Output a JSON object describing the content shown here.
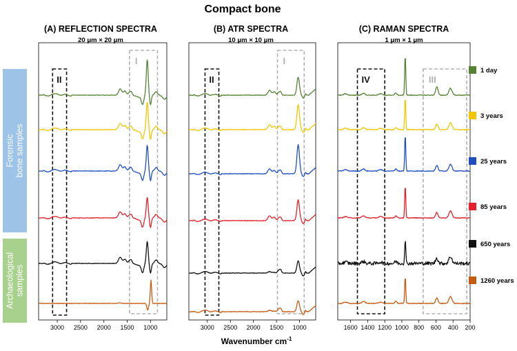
{
  "chart_data": {
    "type": "line",
    "title": "Compact bone",
    "xlabel": "Wavenumber cm",
    "xlabel_superscript": "-1",
    "series_labels": [
      "1 day",
      "3 years",
      "25 years",
      "85 years",
      "650 years",
      "1260 years"
    ],
    "series_colors": [
      "#548235",
      "#f2c500",
      "#1f4fbf",
      "#e4202a",
      "#111111",
      "#c55a11"
    ],
    "group_labels": [
      {
        "lines": [
          "Forensic",
          "bone samples"
        ],
        "color": "#9dc3e6"
      },
      {
        "lines": [
          "Archaeological",
          "samples"
        ],
        "color": "#a9d18e"
      }
    ],
    "panels": [
      {
        "title": "(A) REFLECTION SPECTRA",
        "subtitle": "20 μm × 20 μm",
        "xlim": [
          3400,
          650
        ],
        "xticks": [
          3000,
          2500,
          2000,
          1500,
          1000
        ],
        "regions": [
          {
            "label": "II",
            "x": [
              3100,
              2800
            ],
            "color": "#111111"
          },
          {
            "label": "I",
            "x": [
              1450,
              850
            ],
            "color": "#b0b0b0"
          }
        ]
      },
      {
        "title": "(B) ATR SPECTRA",
        "subtitle": "10 μm  ×  10 μm",
        "xlim": [
          3400,
          650
        ],
        "xticks": [
          3000,
          2500,
          2000,
          1500,
          1000
        ],
        "regions": [
          {
            "label": "II",
            "x": [
              3050,
              2750
            ],
            "color": "#111111"
          },
          {
            "label": "I",
            "x": [
              1480,
              900
            ],
            "color": "#b0b0b0"
          }
        ]
      },
      {
        "title": "(C) RAMAN SPECTRA",
        "subtitle": "1 μm  ×  1 μm",
        "xlim": [
          1750,
          200
        ],
        "xticks": [
          1600,
          1400,
          1200,
          1000,
          800,
          600,
          400,
          200
        ],
        "regions": [
          {
            "label": "IV",
            "x": [
              1520,
              1200
            ],
            "color": "#111111"
          },
          {
            "label": "III",
            "x": [
              750,
              240
            ],
            "color": "#b0b0b0"
          }
        ]
      }
    ]
  }
}
